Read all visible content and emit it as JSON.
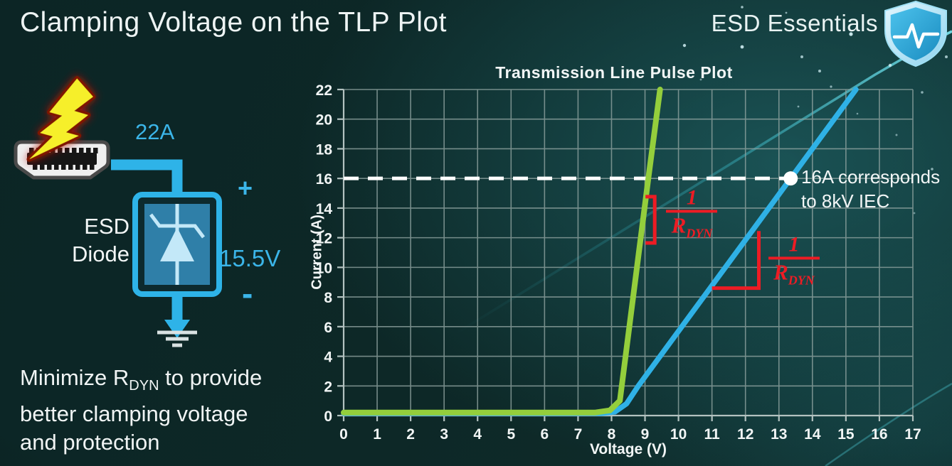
{
  "slide": {
    "title": "Clamping Voltage on the TLP Plot",
    "brand_name": "ESD Essentials",
    "note": {
      "line1_pre": "Minimize R",
      "line1_sub": "DYN",
      "line1_post": " to provide",
      "line2": "better clamping voltage",
      "line3": "and protection"
    }
  },
  "circuit": {
    "surge_current_label": "22A",
    "device_label_line1": "ESD",
    "device_label_line2": "Diode",
    "polarity_plus": "+",
    "clamp_voltage_label": "15.5V",
    "polarity_minus": "-"
  },
  "chart_data": {
    "type": "line",
    "title": "Transmission Line Pulse Plot",
    "xlabel": "Voltage (V)",
    "ylabel": "Current (A)",
    "xlim": [
      0,
      17
    ],
    "ylim": [
      0,
      22
    ],
    "x_ticks": [
      0,
      1,
      2,
      3,
      4,
      5,
      6,
      7,
      8,
      9,
      10,
      11,
      12,
      13,
      14,
      15,
      16,
      17
    ],
    "y_ticks": [
      0,
      2,
      4,
      6,
      8,
      10,
      12,
      14,
      16,
      18,
      20,
      22
    ],
    "grid": true,
    "series": [
      {
        "name": "blue-curve",
        "color": "#2fb1e6",
        "width": 7.5,
        "points": [
          [
            0,
            0.15
          ],
          [
            7.7,
            0.15
          ],
          [
            8.1,
            0.25
          ],
          [
            8.45,
            0.8
          ],
          [
            8.8,
            2.0
          ],
          [
            13.35,
            16
          ],
          [
            15.3,
            22
          ]
        ]
      },
      {
        "name": "green-curve",
        "color": "#94ce3c",
        "width": 8,
        "points": [
          [
            0,
            0.2
          ],
          [
            7.5,
            0.2
          ],
          [
            7.95,
            0.35
          ],
          [
            8.25,
            1.0
          ],
          [
            9.1,
            16
          ],
          [
            9.45,
            22
          ]
        ]
      }
    ],
    "reference_line": {
      "y": 16,
      "x_start": 0,
      "x_end": 13.35,
      "color": "#ffffff",
      "style": "dashed"
    },
    "marker": {
      "x": 13.35,
      "y": 16,
      "color": "#ffffff",
      "label_line1": "16A corresponds",
      "label_line2": "to 8kV IEC"
    },
    "slope_annotations": [
      {
        "numerator": "1",
        "denominator": "R",
        "denominator_sub": "DYN",
        "color": "#ed1c24",
        "shape": "vertical-bracket",
        "x": 9.29,
        "y1": 11.65,
        "y2": 14.77,
        "fraction_x": 10.4,
        "fraction_y": 13.45
      },
      {
        "numerator": "1",
        "denominator": "R",
        "denominator_sub": "DYN",
        "color": "#ed1c24",
        "shape": "right-angle",
        "x1": 11.0,
        "x2": 12.4,
        "y1": 8.6,
        "y2": 12.45,
        "fraction_x": 13.45,
        "fraction_y": 10.3
      }
    ]
  }
}
